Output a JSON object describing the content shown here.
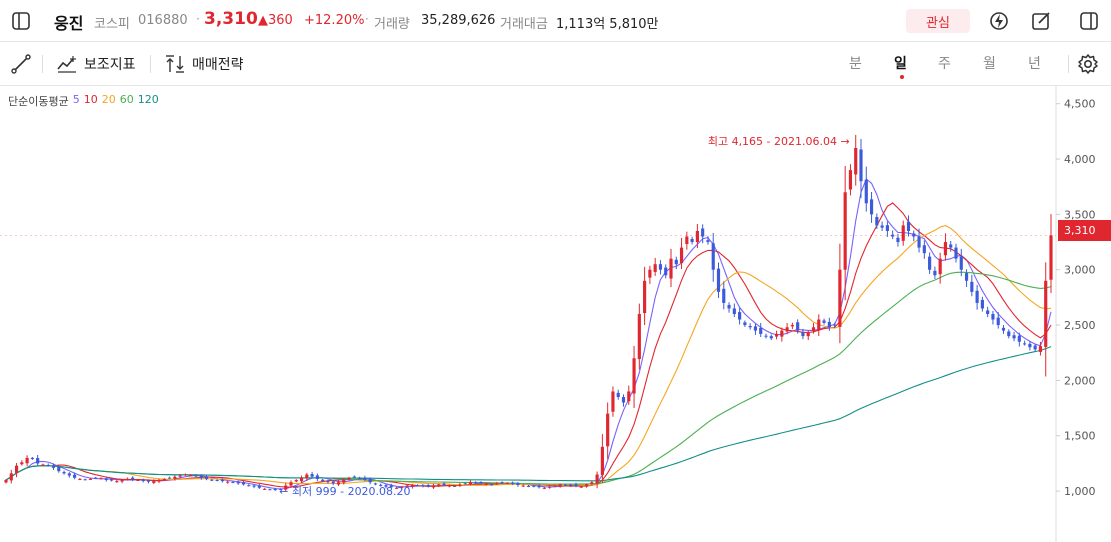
{
  "header": {
    "stock_name": "웅진",
    "market": "코스피",
    "code": "016880",
    "separator": "·",
    "price": "3,310",
    "change": "▲360",
    "change_pct": "+12.20%",
    "volume_label": "거래량",
    "volume": "35,289,626",
    "amount_label": "거래대금",
    "amount": "1,113억 5,810만",
    "watch_label": "관심"
  },
  "icons": {
    "layout": "layout-icon",
    "lightning": "lightning-icon",
    "edit": "edit-icon",
    "split": "split-view-icon",
    "draw": "draw-line-icon",
    "indicator": "indicator-icon",
    "strategy": "strategy-icon",
    "settings": "gear-icon"
  },
  "toolbar": {
    "indicator_label": "보조지표",
    "strategy_label": "매매전략",
    "periods": [
      "분",
      "일",
      "주",
      "월",
      "년"
    ],
    "active_period": "일"
  },
  "legend": {
    "title": "단순이동평균",
    "items": [
      {
        "label": "5",
        "color": "#7b61ff"
      },
      {
        "label": "10",
        "color": "#e0272f"
      },
      {
        "label": "20",
        "color": "#f5a623"
      },
      {
        "label": "60",
        "color": "#4caf50"
      },
      {
        "label": "120",
        "color": "#138f88"
      }
    ]
  },
  "colors": {
    "up": "#e0272f",
    "down": "#3b5bdb",
    "accent": "#e0272f"
  },
  "chart_data": {
    "type": "candlestick",
    "y_ticks": [
      "4,500",
      "4,000",
      "3,500",
      "3,000",
      "2,500",
      "2,000",
      "1,500",
      "1,000"
    ],
    "y_tick_values": [
      4500,
      4000,
      3500,
      3000,
      2500,
      2000,
      1500,
      1000
    ],
    "ylim": [
      540,
      4660
    ],
    "current_price": 3310,
    "current_price_label": "3,310",
    "high_annotation": "최고 4,165 - 2021.06.04 →",
    "low_annotation": "← 최저 999 - 2020.08.20",
    "high_value": 4165,
    "low_value": 999,
    "close_series": [
      1100,
      1160,
      1230,
      1260,
      1300,
      1290,
      1250,
      1240,
      1230,
      1210,
      1180,
      1160,
      1140,
      1120,
      1110,
      1105,
      1110,
      1120,
      1115,
      1100,
      1095,
      1090,
      1100,
      1110,
      1105,
      1100,
      1090,
      1085,
      1090,
      1100,
      1110,
      1120,
      1130,
      1140,
      1150,
      1145,
      1135,
      1120,
      1110,
      1100,
      1095,
      1090,
      1085,
      1080,
      1070,
      1060,
      1050,
      1040,
      1030,
      1020,
      1015,
      1010,
      1020,
      1050,
      1080,
      1100,
      1120,
      1150,
      1130,
      1110,
      1090,
      1080,
      1070,
      1080,
      1100,
      1120,
      1130,
      1120,
      1100,
      1080,
      1060,
      1050,
      1040,
      1035,
      1030,
      1040,
      1050,
      1055,
      1050,
      1045,
      1040,
      1050,
      1060,
      1055,
      1050,
      1045,
      1060,
      1070,
      1080,
      1075,
      1070,
      1065,
      1060,
      1070,
      1080,
      1075,
      1065,
      1055,
      1050,
      1045,
      1040,
      1035,
      1030,
      1040,
      1050,
      1060,
      1055,
      1050,
      1045,
      1040,
      1060,
      1080,
      1150,
      1400,
      1700,
      1900,
      1850,
      1800,
      1900,
      2200,
      2600,
      2900,
      3000,
      3050,
      3000,
      2950,
      3100,
      3050,
      3200,
      3300,
      3250,
      3350,
      3300,
      3250,
      3000,
      2800,
      2700,
      2650,
      2600,
      2550,
      2500,
      2480,
      2450,
      2420,
      2400,
      2380,
      2420,
      2450,
      2480,
      2500,
      2450,
      2400,
      2430,
      2480,
      2550,
      2520,
      2480,
      2500,
      3000,
      3700,
      3900,
      4100,
      3800,
      3600,
      3500,
      3400,
      3380,
      3350,
      3300,
      3250,
      3400,
      3350,
      3300,
      3200,
      3150,
      3000,
      2950,
      3100,
      3250,
      3200,
      3100,
      3000,
      2900,
      2800,
      2700,
      2650,
      2600,
      2550,
      2500,
      2450,
      2400,
      2380,
      2350,
      2330,
      2300,
      2280,
      2310,
      2900,
      3310
    ],
    "ma_series": [
      {
        "name": "5",
        "color": "#7b61ff"
      },
      {
        "name": "10",
        "color": "#e0272f"
      },
      {
        "name": "20",
        "color": "#f5a623"
      },
      {
        "name": "60",
        "color": "#4caf50"
      },
      {
        "name": "120",
        "color": "#138f88"
      }
    ]
  }
}
